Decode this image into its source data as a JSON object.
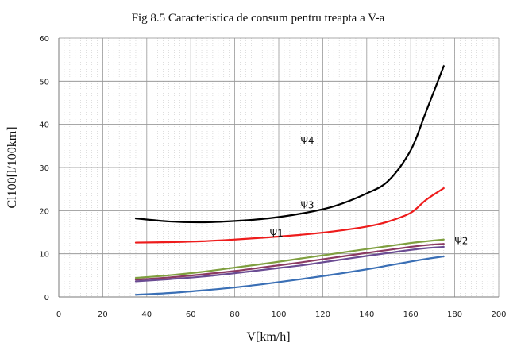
{
  "chart_data": {
    "type": "line",
    "title": "Fig 8.5 Caracteristica de consum pentru treapta a V-a",
    "xlabel": "V[km/h]",
    "ylabel": "Cl100[l/100km]",
    "xlim": [
      0,
      200
    ],
    "ylim": [
      0,
      60
    ],
    "x_ticks": [
      "0",
      "20",
      "40",
      "60",
      "80",
      "100",
      "120",
      "140",
      "160",
      "180",
      "200"
    ],
    "y_ticks": [
      "0",
      "10",
      "20",
      "30",
      "40",
      "50",
      "60"
    ],
    "grid": true,
    "minor_x_grid": true,
    "x": [
      35,
      50,
      65,
      80,
      95,
      110,
      125,
      140,
      150,
      160,
      167,
      175
    ],
    "series": [
      {
        "color": "#000000",
        "values": [
          18.2,
          17.5,
          17.3,
          17.6,
          18.2,
          19.3,
          21.0,
          24.0,
          27.0,
          34.0,
          43.0,
          53.5
        ]
      },
      {
        "color": "#ee1c1c",
        "values": [
          12.6,
          12.7,
          12.9,
          13.3,
          13.8,
          14.4,
          15.2,
          16.3,
          17.5,
          19.5,
          22.5,
          25.2
        ]
      },
      {
        "color": "#7f9f3f",
        "values": [
          4.4,
          5.0,
          5.8,
          6.8,
          7.8,
          8.9,
          10.0,
          11.1,
          11.8,
          12.5,
          12.9,
          13.3
        ]
      },
      {
        "color": "#8b3a62",
        "values": [
          4.0,
          4.5,
          5.2,
          6.0,
          7.0,
          8.0,
          9.1,
          10.2,
          10.9,
          11.6,
          12.0,
          12.3
        ]
      },
      {
        "color": "#6a4c93",
        "values": [
          3.6,
          4.1,
          4.7,
          5.5,
          6.4,
          7.3,
          8.4,
          9.5,
          10.2,
          10.9,
          11.3,
          11.6
        ]
      },
      {
        "color": "#3a6fb5",
        "values": [
          0.5,
          0.9,
          1.5,
          2.2,
          3.1,
          4.1,
          5.2,
          6.4,
          7.3,
          8.2,
          8.8,
          9.4
        ]
      }
    ],
    "annotations": [
      {
        "text": "Ψ4",
        "x": 113,
        "y": 35.5
      },
      {
        "text": "Ψ3",
        "x": 113,
        "y": 20.5
      },
      {
        "text": "Ψ1",
        "x": 99,
        "y": 14.0
      },
      {
        "text": "Ψ2",
        "x": 183,
        "y": 12.2
      }
    ]
  }
}
